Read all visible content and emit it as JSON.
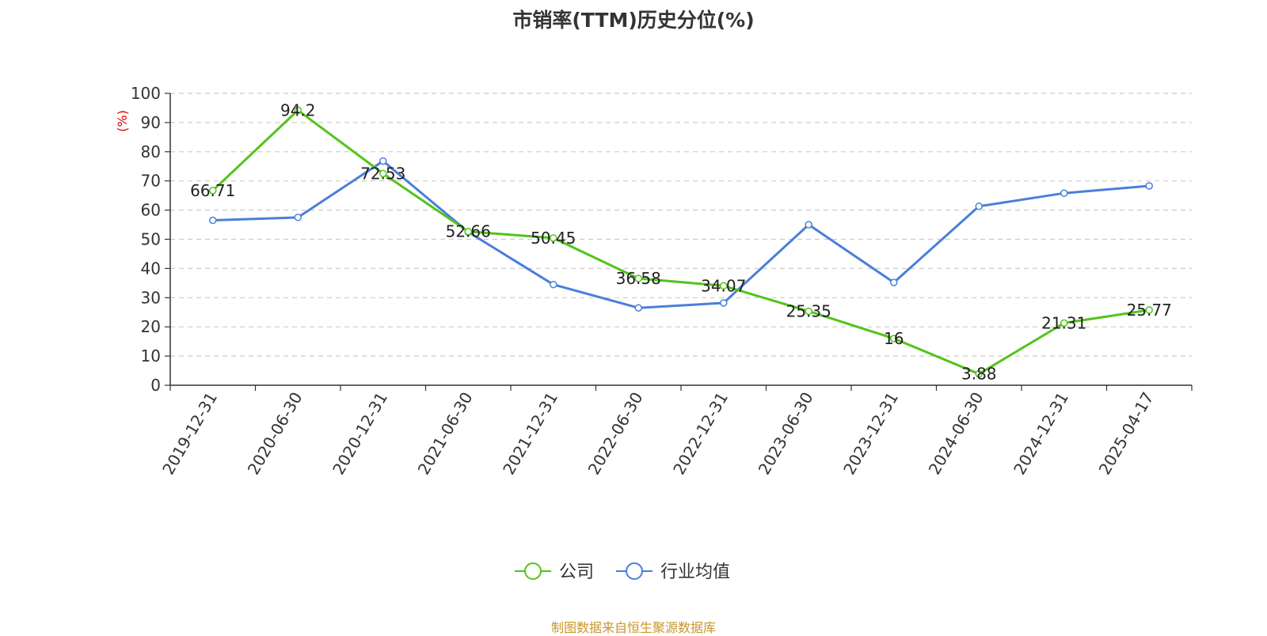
{
  "chart_data": {
    "type": "line",
    "title": "市销率(TTM)历史分位(%)",
    "ylabel": "(%)",
    "ylim": [
      0,
      100
    ],
    "yticks": [
      0,
      10,
      20,
      30,
      40,
      50,
      60,
      70,
      80,
      90,
      100
    ],
    "grid": true,
    "legend_position": "bottom",
    "categories": [
      "2019-12-31",
      "2020-06-30",
      "2020-12-31",
      "2021-06-30",
      "2021-12-31",
      "2022-06-30",
      "2022-12-31",
      "2023-06-30",
      "2023-12-31",
      "2024-06-30",
      "2024-12-31",
      "2025-04-17"
    ],
    "series": [
      {
        "name": "公司",
        "color": "#52c41a",
        "values": [
          66.71,
          94.2,
          72.53,
          52.66,
          50.45,
          36.58,
          34.07,
          25.35,
          16,
          3.88,
          21.31,
          25.77
        ],
        "labels": [
          "66.71",
          "94.2",
          "72.53",
          "52.66",
          "50.45",
          "36.58",
          "34.07",
          "25.35",
          "16",
          "3.88",
          "21.31",
          "25.77"
        ]
      },
      {
        "name": "行业均值",
        "color": "#4a7fdb",
        "values": [
          56.5,
          57.5,
          76.8,
          52.5,
          34.5,
          26.5,
          28.2,
          55.0,
          35.2,
          61.3,
          65.8,
          68.3
        ]
      }
    ]
  },
  "source": "制图数据来自恒生聚源数据库"
}
